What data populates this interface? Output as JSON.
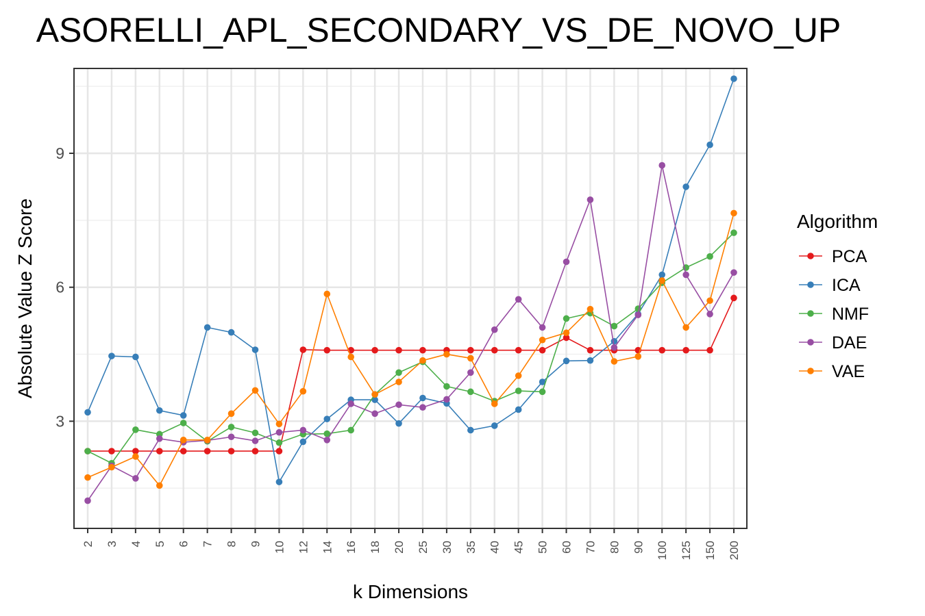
{
  "chart_data": {
    "type": "line",
    "title": "ASORELLI_APL_SECONDARY_VS_DE_NOVO_UP",
    "xlabel": "k Dimensions",
    "ylabel": "Absolute Value Z Score",
    "categories": [
      "2",
      "3",
      "4",
      "5",
      "6",
      "7",
      "8",
      "9",
      "10",
      "12",
      "14",
      "16",
      "18",
      "20",
      "25",
      "30",
      "35",
      "40",
      "45",
      "50",
      "60",
      "70",
      "80",
      "90",
      "100",
      "125",
      "150",
      "200"
    ],
    "ylim": [
      0.6,
      10.9
    ],
    "yticks": [
      3,
      6,
      9
    ],
    "grid": true,
    "legend": {
      "title": "Algorithm",
      "position": "right"
    },
    "series": [
      {
        "name": "PCA",
        "color": "#e41a1c",
        "values": [
          2.33,
          2.33,
          2.33,
          2.33,
          2.33,
          2.33,
          2.33,
          2.33,
          2.33,
          4.6,
          4.59,
          4.59,
          4.59,
          4.59,
          4.59,
          4.59,
          4.59,
          4.59,
          4.59,
          4.59,
          4.87,
          4.59,
          4.59,
          4.59,
          4.59,
          4.59,
          4.59,
          5.76
        ]
      },
      {
        "name": "ICA",
        "color": "#377eb8",
        "values": [
          3.2,
          4.46,
          4.44,
          3.24,
          3.13,
          5.1,
          4.99,
          4.6,
          1.64,
          2.54,
          3.05,
          3.48,
          3.48,
          2.95,
          3.52,
          3.4,
          2.8,
          2.9,
          3.26,
          3.88,
          4.35,
          4.36,
          4.79,
          5.4,
          6.28,
          8.25,
          9.19,
          10.67
        ]
      },
      {
        "name": "NMF",
        "color": "#4daf4a",
        "values": [
          2.33,
          2.06,
          2.81,
          2.71,
          2.96,
          2.55,
          2.87,
          2.74,
          2.52,
          2.71,
          2.72,
          2.8,
          3.6,
          4.09,
          4.33,
          3.78,
          3.66,
          3.45,
          3.68,
          3.66,
          5.3,
          5.42,
          5.13,
          5.52,
          6.1,
          6.44,
          6.69,
          7.22
        ]
      },
      {
        "name": "DAE",
        "color": "#984ea3",
        "values": [
          1.22,
          2.0,
          1.72,
          2.61,
          2.53,
          2.57,
          2.65,
          2.56,
          2.75,
          2.8,
          2.58,
          3.39,
          3.17,
          3.37,
          3.31,
          3.49,
          4.09,
          5.05,
          5.73,
          5.1,
          6.57,
          7.96,
          4.65,
          5.38,
          8.73,
          6.28,
          5.4,
          6.33
        ]
      },
      {
        "name": "VAE",
        "color": "#ff7f00",
        "values": [
          1.74,
          1.97,
          2.21,
          1.56,
          2.58,
          2.58,
          3.17,
          3.69,
          2.94,
          3.67,
          5.85,
          4.44,
          3.6,
          3.88,
          4.36,
          4.5,
          4.41,
          3.39,
          4.02,
          4.82,
          4.98,
          5.51,
          4.34,
          4.45,
          6.15,
          5.1,
          5.7,
          7.66
        ]
      }
    ]
  }
}
